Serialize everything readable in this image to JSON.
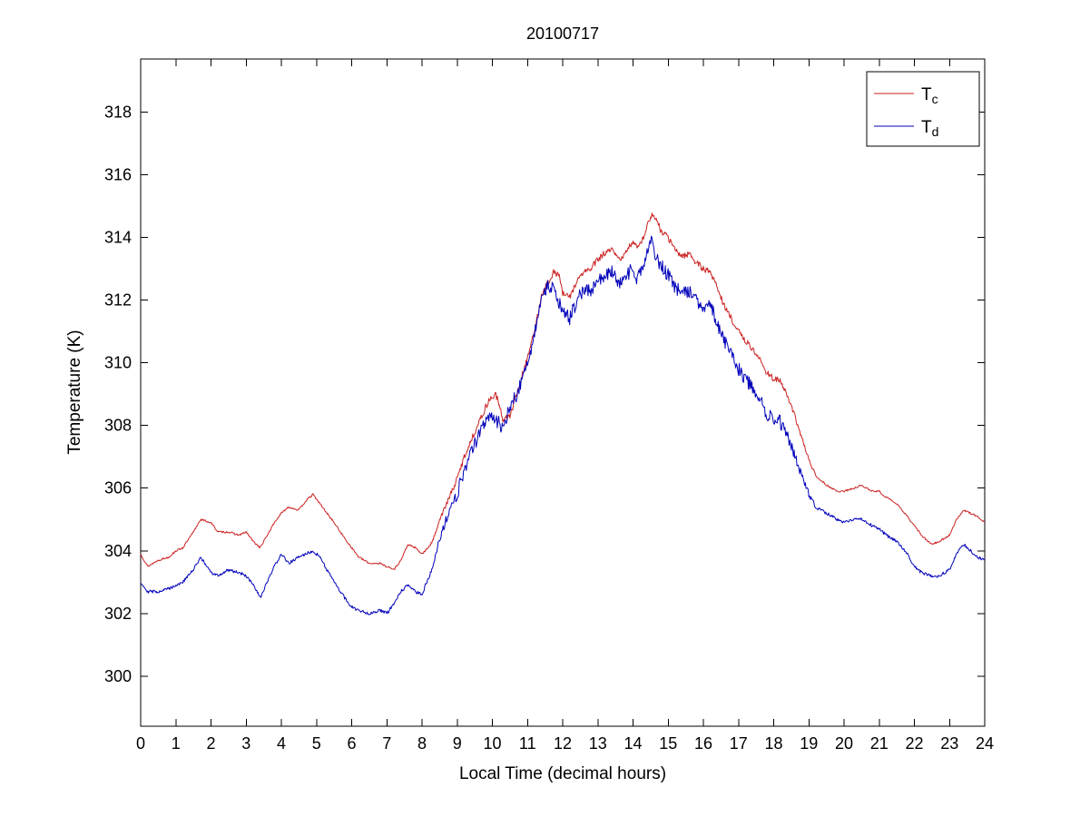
{
  "figure": {
    "background": "#ffffff",
    "axis_color": "#000000"
  },
  "chart_data": {
    "type": "line",
    "title": "20100717",
    "xlabel": "Local Time (decimal hours)",
    "ylabel": "Temperature (K)",
    "xlim": [
      0,
      24
    ],
    "ylim": [
      298.4,
      319.7
    ],
    "xticks": [
      0,
      1,
      2,
      3,
      4,
      5,
      6,
      7,
      8,
      9,
      10,
      11,
      12,
      13,
      14,
      15,
      16,
      17,
      18,
      19,
      20,
      21,
      22,
      23,
      24
    ],
    "yticks": [
      300,
      302,
      304,
      306,
      308,
      310,
      312,
      314,
      316,
      318
    ],
    "grid": false,
    "legend_position": "top-right",
    "x": [
      0,
      0.2,
      0.5,
      0.8,
      1.0,
      1.2,
      1.5,
      1.7,
      2.0,
      2.2,
      2.5,
      2.8,
      3.0,
      3.2,
      3.4,
      3.6,
      3.8,
      4.0,
      4.2,
      4.5,
      4.7,
      4.9,
      5.1,
      5.3,
      5.5,
      5.8,
      6.0,
      6.2,
      6.5,
      6.8,
      7.0,
      7.2,
      7.4,
      7.6,
      7.8,
      8.0,
      8.1,
      8.3,
      8.5,
      8.7,
      9.0,
      9.2,
      9.5,
      9.7,
      9.9,
      10.1,
      10.3,
      10.5,
      10.7,
      11.0,
      11.2,
      11.4,
      11.6,
      11.75,
      11.9,
      12.0,
      12.2,
      12.4,
      12.6,
      12.8,
      13.0,
      13.2,
      13.4,
      13.6,
      13.8,
      14.0,
      14.1,
      14.3,
      14.5,
      14.6,
      14.8,
      15.0,
      15.2,
      15.4,
      15.6,
      15.8,
      16.0,
      16.2,
      16.4,
      16.6,
      16.8,
      17.0,
      17.2,
      17.5,
      17.8,
      18.0,
      18.2,
      18.4,
      18.6,
      18.8,
      19.0,
      19.2,
      19.5,
      19.8,
      20.0,
      20.3,
      20.5,
      20.8,
      21.0,
      21.2,
      21.5,
      21.8,
      22.0,
      22.2,
      22.5,
      22.7,
      23.0,
      23.2,
      23.4,
      23.6,
      23.8,
      24.0
    ],
    "series": [
      {
        "name": "T_c",
        "label_main": "T",
        "label_sub": "c",
        "color": "#cc2222",
        "noise_base": 0.03,
        "noise_day": 0.1,
        "seed": 13,
        "values": [
          303.9,
          303.5,
          303.7,
          303.8,
          304.0,
          304.1,
          304.6,
          305.0,
          304.9,
          304.6,
          304.6,
          304.5,
          304.6,
          304.3,
          304.1,
          304.5,
          304.9,
          305.2,
          305.4,
          305.3,
          305.6,
          305.8,
          305.5,
          305.2,
          304.9,
          304.4,
          304.1,
          303.8,
          303.6,
          303.6,
          303.5,
          303.4,
          303.7,
          304.2,
          304.1,
          303.9,
          304.0,
          304.3,
          305.0,
          305.5,
          306.3,
          307.0,
          307.8,
          308.3,
          308.8,
          309.0,
          308.2,
          308.3,
          309.0,
          310.2,
          311.0,
          312.2,
          312.6,
          312.9,
          312.8,
          312.2,
          312.1,
          312.6,
          312.9,
          313.0,
          313.3,
          313.5,
          313.6,
          313.3,
          313.5,
          313.9,
          313.7,
          314.0,
          314.7,
          314.7,
          314.2,
          314.0,
          313.6,
          313.4,
          313.5,
          313.2,
          313.0,
          312.9,
          312.4,
          311.8,
          311.4,
          311.0,
          310.7,
          310.3,
          309.7,
          309.5,
          309.4,
          308.9,
          308.3,
          307.6,
          306.9,
          306.4,
          306.1,
          305.9,
          305.9,
          306.0,
          306.1,
          305.9,
          305.9,
          305.7,
          305.5,
          305.1,
          304.8,
          304.5,
          304.2,
          304.3,
          304.5,
          305.0,
          305.3,
          305.2,
          305.1,
          304.9
        ]
      },
      {
        "name": "T_d",
        "label_main": "T",
        "label_sub": "d",
        "color": "#0000bb",
        "noise_base": 0.05,
        "noise_day": 0.22,
        "seed": 29,
        "values": [
          303.0,
          302.7,
          302.7,
          302.8,
          302.9,
          303.0,
          303.4,
          303.8,
          303.3,
          303.2,
          303.4,
          303.3,
          303.2,
          302.9,
          302.5,
          303.0,
          303.5,
          303.9,
          303.6,
          303.8,
          303.9,
          304.0,
          303.8,
          303.4,
          303.0,
          302.5,
          302.2,
          302.1,
          302.0,
          302.1,
          302.0,
          302.3,
          302.7,
          302.9,
          302.7,
          302.6,
          302.9,
          303.5,
          304.4,
          305.0,
          305.8,
          306.6,
          307.4,
          308.0,
          308.3,
          308.2,
          307.9,
          308.6,
          309.0,
          310.0,
          310.9,
          312.2,
          312.5,
          312.3,
          311.9,
          311.7,
          311.4,
          312.0,
          312.3,
          312.3,
          312.6,
          312.8,
          312.9,
          312.5,
          312.8,
          313.0,
          312.6,
          313.1,
          314.0,
          313.5,
          313.1,
          312.8,
          312.4,
          312.2,
          312.3,
          312.0,
          311.8,
          311.9,
          311.2,
          310.7,
          310.2,
          309.8,
          309.5,
          309.0,
          308.4,
          308.2,
          308.1,
          307.7,
          307.0,
          306.4,
          305.8,
          305.4,
          305.2,
          305.0,
          304.9,
          305.0,
          305.0,
          304.8,
          304.7,
          304.5,
          304.3,
          303.9,
          303.5,
          303.3,
          303.2,
          303.2,
          303.4,
          303.9,
          304.2,
          304.0,
          303.8,
          303.7
        ]
      }
    ]
  }
}
